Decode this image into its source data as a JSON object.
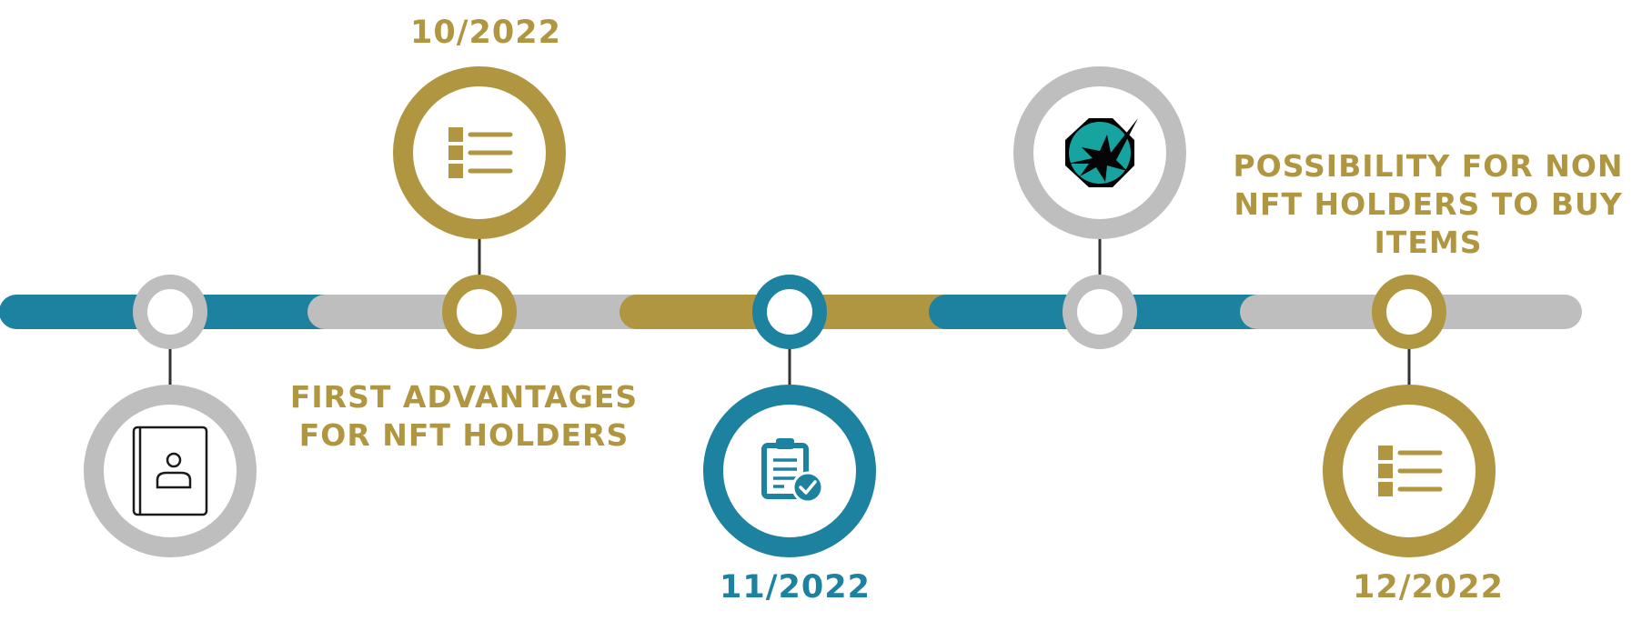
{
  "colors": {
    "teal": "#1c82a0",
    "gold": "#b09640",
    "gray": "#bebebe",
    "stem": "#333333"
  },
  "timeline": {
    "segments": [
      "teal",
      "gray",
      "gold",
      "teal",
      "gray"
    ],
    "milestones": [
      {
        "node_color": "gray",
        "icon": "contact-book-icon",
        "icon_side": "below",
        "icon_ring": "gray"
      },
      {
        "node_color": "gold",
        "icon": "list-icon",
        "icon_side": "above",
        "icon_ring": "gold"
      },
      {
        "node_color": "teal",
        "icon": "clipboard-check-icon",
        "icon_side": "below",
        "icon_ring": "teal"
      },
      {
        "node_color": "gray",
        "icon": "splash-logo-icon",
        "icon_side": "above",
        "icon_ring": "gray"
      },
      {
        "node_color": "gold",
        "icon": "list-icon",
        "icon_side": "below",
        "icon_ring": "gold"
      }
    ]
  },
  "dates": {
    "oct": "10/2022",
    "nov": "11/2022",
    "dec": "12/2022"
  },
  "labels": {
    "first_advantages_line1": "FIRST ADVANTAGES",
    "first_advantages_line2": "FOR NFT HOLDERS",
    "possibility_line1": "POSSIBILITY FOR NON",
    "possibility_line2": "NFT HOLDERS TO BUY",
    "possibility_line3": "ITEMS"
  }
}
